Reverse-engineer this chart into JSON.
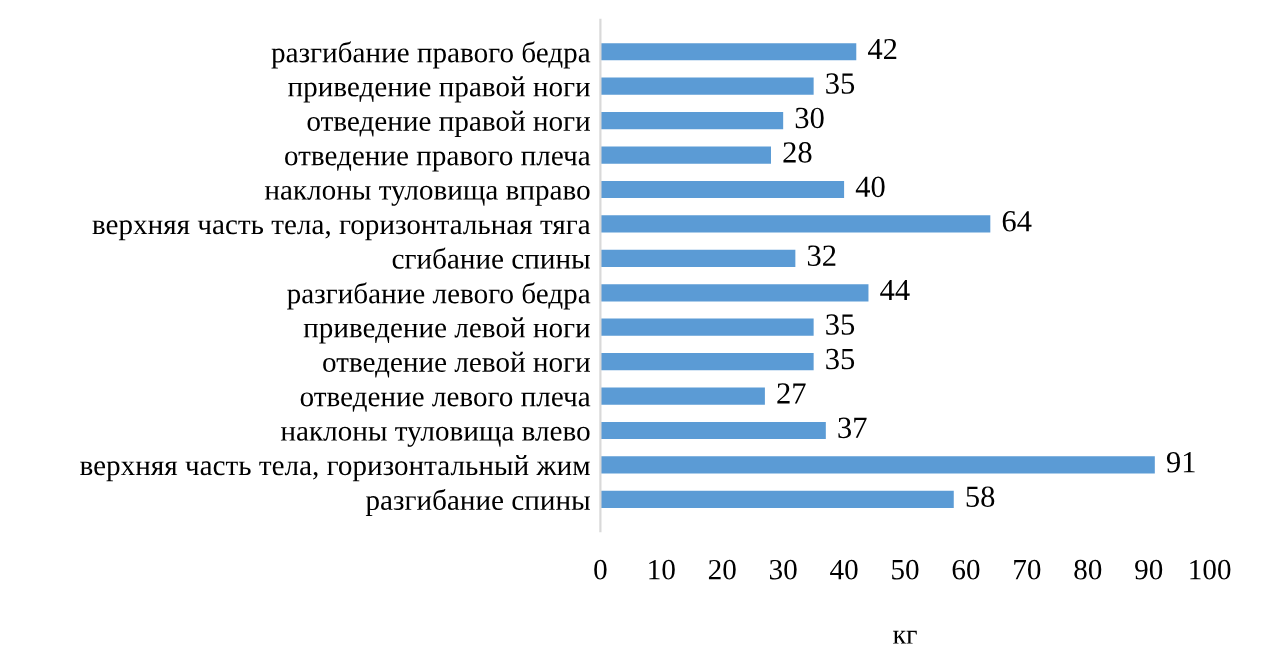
{
  "chart_data": {
    "type": "bar",
    "orientation": "horizontal",
    "xlabel": "кг",
    "categories": [
      "разгибание правого бедра",
      "приведение правой ноги",
      "отведение правой ноги",
      "отведение правого плеча",
      "наклоны туловища вправо",
      "верхняя часть тела, горизонтальная тяга",
      "сгибание спины",
      "разгибание левого бедра",
      "приведение левой ноги",
      "отведение левой ноги",
      "отведение левого плеча",
      "наклоны туловища влево",
      "верхняя часть тела, горизонтальный жим",
      "разгибание спины"
    ],
    "values": [
      42,
      35,
      30,
      28,
      40,
      64,
      32,
      44,
      35,
      35,
      27,
      37,
      91,
      58
    ],
    "color": "#5b9bd5",
    "xlim": [
      0,
      100
    ],
    "xticks": [
      0,
      10,
      20,
      30,
      40,
      50,
      60,
      70,
      80,
      90,
      100
    ],
    "grid": false,
    "data_labels": true
  }
}
